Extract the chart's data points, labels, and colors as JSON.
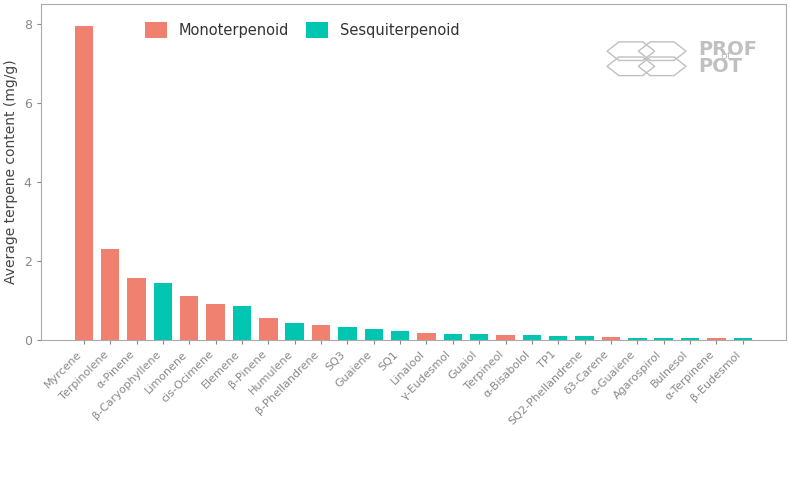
{
  "categories": [
    "Myrcene",
    "Terpinolene",
    "α-Pinene",
    "β-Caryophyllene",
    "Limonene",
    "cis-Ocimene",
    "Elemene",
    "β-Pinene",
    "Humulene",
    "β-Phellandrene",
    "SQ3",
    "Guaiene",
    "SQ1",
    "Linalool",
    "γ-Eudesmol",
    "Guaiol",
    "Terpineol",
    "α-Bisabolol",
    "TP1",
    "SQ2-Phellandrene",
    "δ3-Carene",
    "α-Guaiene",
    "Agarospirol",
    "Bulnesol",
    "α-Terpinene",
    "β-Eudesmol"
  ],
  "values": [
    7.95,
    2.3,
    1.58,
    1.45,
    1.12,
    0.92,
    0.85,
    0.55,
    0.43,
    0.37,
    0.32,
    0.27,
    0.22,
    0.18,
    0.16,
    0.16,
    0.12,
    0.12,
    0.1,
    0.09,
    0.07,
    0.06,
    0.05,
    0.04,
    0.04,
    0.04
  ],
  "types": [
    "mono",
    "mono",
    "mono",
    "sesqui",
    "mono",
    "mono",
    "sesqui",
    "mono",
    "sesqui",
    "mono",
    "sesqui",
    "sesqui",
    "sesqui",
    "mono",
    "sesqui",
    "sesqui",
    "mono",
    "sesqui",
    "sesqui",
    "sesqui",
    "mono",
    "sesqui",
    "sesqui",
    "sesqui",
    "mono",
    "sesqui"
  ],
  "mono_color": "#F08070",
  "sesqui_color": "#00C5B0",
  "ylabel": "Average terpene content (mg/g)",
  "ylim": [
    0,
    8.5
  ],
  "yticks": [
    0,
    2,
    4,
    6,
    8
  ],
  "background_color": "#FFFFFF",
  "legend_mono": "Monoterpenoid",
  "legend_sesqui": "Sesquiterpenoid",
  "logo_color": "#C0C0C0",
  "logo_text": "PROF",
  "logo_of": "of",
  "logo_pot": "POT"
}
